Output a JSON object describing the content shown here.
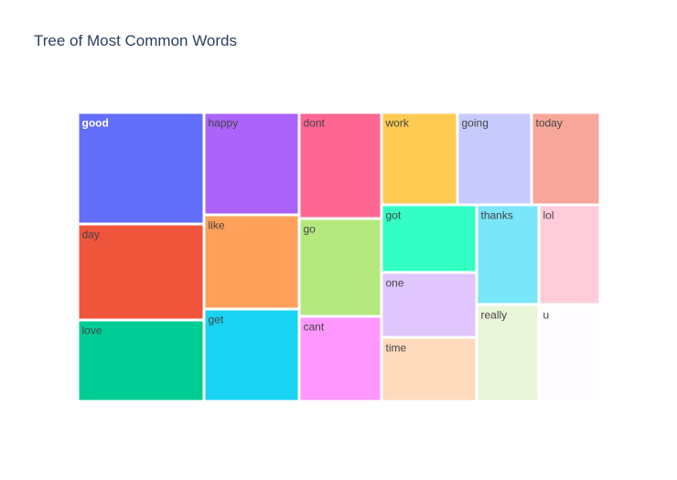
{
  "chart_data": {
    "type": "treemap",
    "title": "Tree of Most Common Words",
    "items": [
      {
        "label": "good",
        "color": "#636efa",
        "text_color": "#ffffff"
      },
      {
        "label": "day",
        "color": "#ef553b",
        "text_color": "#444444"
      },
      {
        "label": "love",
        "color": "#00cc96",
        "text_color": "#444444"
      },
      {
        "label": "happy",
        "color": "#ab63fa",
        "text_color": "#444444"
      },
      {
        "label": "like",
        "color": "#ffa15a",
        "text_color": "#444444"
      },
      {
        "label": "get",
        "color": "#19d3f3",
        "text_color": "#444444"
      },
      {
        "label": "dont",
        "color": "#ff6692",
        "text_color": "#444444"
      },
      {
        "label": "go",
        "color": "#b6e880",
        "text_color": "#444444"
      },
      {
        "label": "cant",
        "color": "#ff97ff",
        "text_color": "#444444"
      },
      {
        "label": "work",
        "color": "#fecb52",
        "text_color": "#444444"
      },
      {
        "label": "going",
        "color": "#c6cafd",
        "text_color": "#444444"
      },
      {
        "label": "today",
        "color": "#f7a799",
        "text_color": "#444444"
      },
      {
        "label": "got",
        "color": "#33ffc5",
        "text_color": "#444444"
      },
      {
        "label": "one",
        "color": "#e0c6fd",
        "text_color": "#444444"
      },
      {
        "label": "time",
        "color": "#ffdabd",
        "text_color": "#444444"
      },
      {
        "label": "thanks",
        "color": "#7ae6f9",
        "text_color": "#444444"
      },
      {
        "label": "really",
        "color": "#e9f6d9",
        "text_color": "#444444"
      },
      {
        "label": "lol",
        "color": "#ffccdb",
        "text_color": "#444444"
      },
      {
        "label": "u",
        "color": "#fffcff",
        "text_color": "#444444"
      }
    ]
  }
}
